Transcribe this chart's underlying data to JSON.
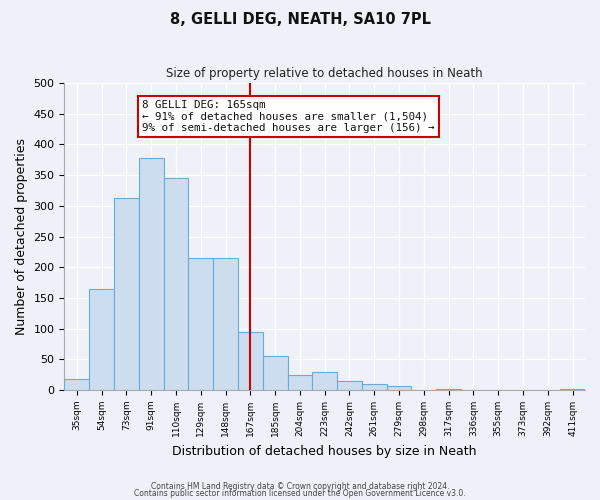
{
  "title": "8, GELLI DEG, NEATH, SA10 7PL",
  "subtitle": "Size of property relative to detached houses in Neath",
  "xlabel": "Distribution of detached houses by size in Neath",
  "ylabel": "Number of detached properties",
  "bar_labels": [
    "35sqm",
    "54sqm",
    "73sqm",
    "91sqm",
    "110sqm",
    "129sqm",
    "148sqm",
    "167sqm",
    "185sqm",
    "204sqm",
    "223sqm",
    "242sqm",
    "261sqm",
    "279sqm",
    "298sqm",
    "317sqm",
    "336sqm",
    "355sqm",
    "373sqm",
    "392sqm",
    "411sqm"
  ],
  "bar_values": [
    18,
    165,
    313,
    378,
    345,
    215,
    215,
    95,
    55,
    25,
    30,
    15,
    10,
    7,
    0,
    2,
    0,
    0,
    0,
    0,
    1
  ],
  "bar_color": "#ccddf0",
  "bar_edge_color": "#6aaad4",
  "marker_line_index": 7,
  "annotation_title": "8 GELLI DEG: 165sqm",
  "annotation_line1": "← 91% of detached houses are smaller (1,504)",
  "annotation_line2": "9% of semi-detached houses are larger (156) →",
  "annotation_box_color": "#ffffff",
  "annotation_box_edge": "#cc0000",
  "vline_color": "#cc0000",
  "footer1": "Contains HM Land Registry data © Crown copyright and database right 2024.",
  "footer2": "Contains public sector information licensed under the Open Government Licence v3.0.",
  "ylim": [
    0,
    500
  ],
  "background_color": "#eef2f8",
  "grid_color": "#ffffff",
  "tick_color": "#333333"
}
